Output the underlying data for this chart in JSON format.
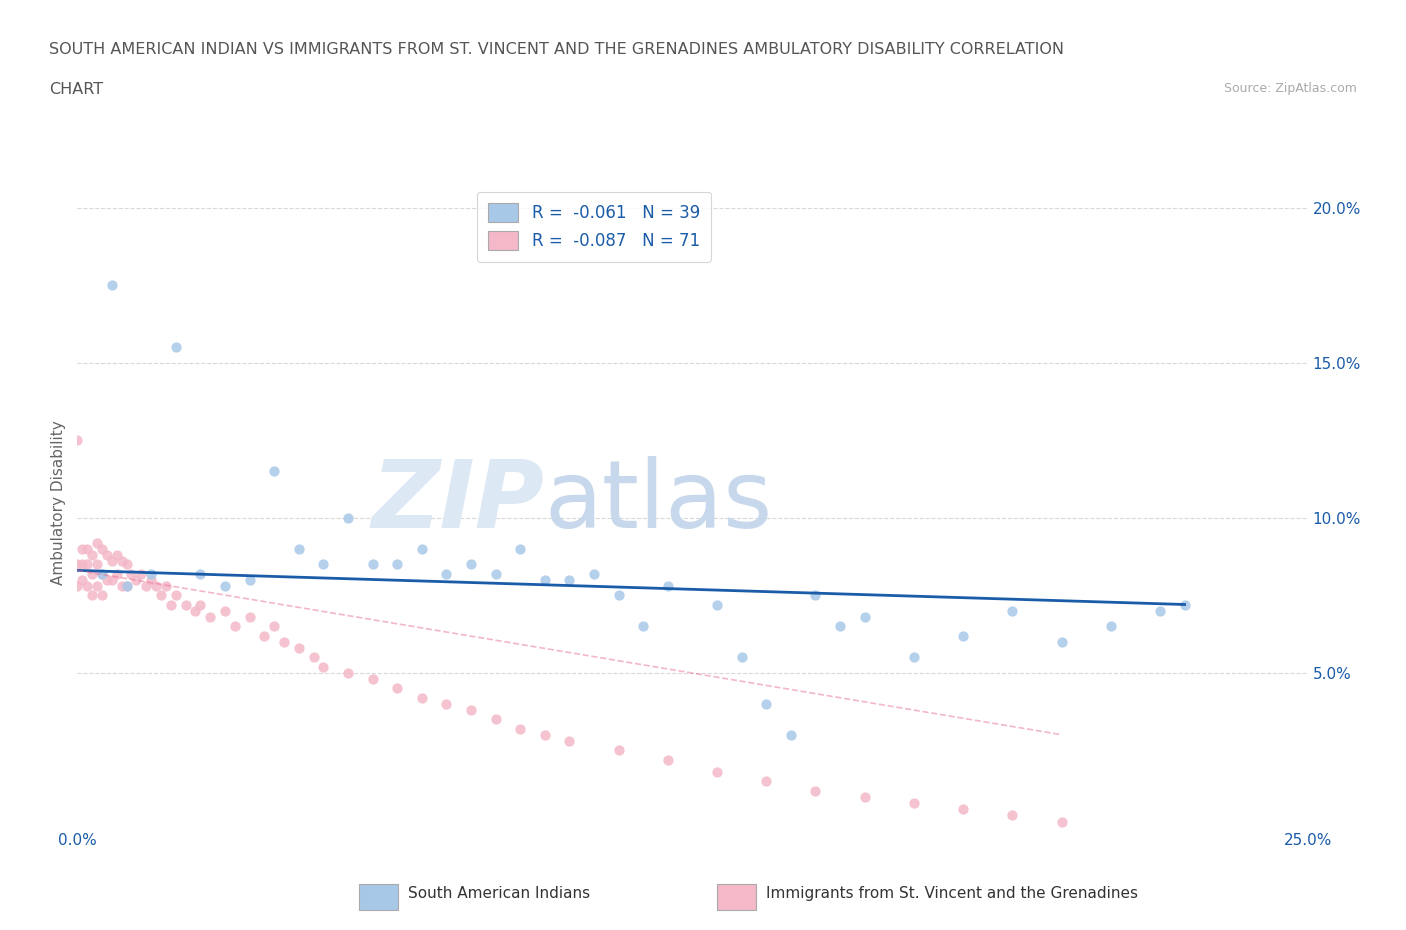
{
  "title_line1": "SOUTH AMERICAN INDIAN VS IMMIGRANTS FROM ST. VINCENT AND THE GRENADINES AMBULATORY DISABILITY CORRELATION",
  "title_line2": "CHART",
  "source_text": "Source: ZipAtlas.com",
  "ylabel": "Ambulatory Disability",
  "watermark": "ZIPatlas",
  "legend_r1": "R =  -0.061",
  "legend_n1": "N = 39",
  "legend_r2": "R =  -0.087",
  "legend_n2": "N = 71",
  "blue_color": "#a8c8e8",
  "pink_color": "#f4b8c8",
  "line_blue": "#1a5ca8",
  "line_pink": "#e87090",
  "xlim": [
    0.0,
    0.25
  ],
  "ylim": [
    0.0,
    0.21
  ],
  "xticks": [
    0.0,
    0.05,
    0.1,
    0.15,
    0.2,
    0.25
  ],
  "xticklabels": [
    "0.0%",
    "",
    "",
    "",
    "",
    "25.0%"
  ],
  "ytick_positions": [
    0.05,
    0.1,
    0.15,
    0.2
  ],
  "ytick_labels": [
    "5.0%",
    "10.0%",
    "15.0%",
    "20.0%"
  ],
  "blue_scatter_x": [
    0.007,
    0.02,
    0.04,
    0.045,
    0.05,
    0.055,
    0.06,
    0.065,
    0.07,
    0.08,
    0.085,
    0.09,
    0.1,
    0.105,
    0.11,
    0.115,
    0.12,
    0.13,
    0.135,
    0.14,
    0.15,
    0.155,
    0.16,
    0.17,
    0.18,
    0.19,
    0.2,
    0.21,
    0.22,
    0.225,
    0.005,
    0.01,
    0.015,
    0.025,
    0.03,
    0.035,
    0.075,
    0.095,
    0.145
  ],
  "blue_scatter_y": [
    0.175,
    0.155,
    0.115,
    0.09,
    0.085,
    0.1,
    0.085,
    0.085,
    0.09,
    0.085,
    0.082,
    0.09,
    0.08,
    0.082,
    0.075,
    0.065,
    0.078,
    0.072,
    0.055,
    0.04,
    0.075,
    0.065,
    0.068,
    0.055,
    0.062,
    0.07,
    0.06,
    0.065,
    0.07,
    0.072,
    0.082,
    0.078,
    0.082,
    0.082,
    0.078,
    0.08,
    0.082,
    0.08,
    0.03
  ],
  "pink_scatter_x": [
    0.0,
    0.0,
    0.0,
    0.001,
    0.001,
    0.001,
    0.002,
    0.002,
    0.002,
    0.003,
    0.003,
    0.003,
    0.004,
    0.004,
    0.004,
    0.005,
    0.005,
    0.005,
    0.006,
    0.006,
    0.007,
    0.007,
    0.008,
    0.008,
    0.009,
    0.009,
    0.01,
    0.01,
    0.011,
    0.012,
    0.013,
    0.014,
    0.015,
    0.016,
    0.017,
    0.018,
    0.019,
    0.02,
    0.022,
    0.024,
    0.025,
    0.027,
    0.03,
    0.032,
    0.035,
    0.038,
    0.04,
    0.042,
    0.045,
    0.048,
    0.05,
    0.055,
    0.06,
    0.065,
    0.07,
    0.075,
    0.08,
    0.085,
    0.09,
    0.095,
    0.1,
    0.11,
    0.12,
    0.13,
    0.14,
    0.15,
    0.16,
    0.17,
    0.18,
    0.19,
    0.2
  ],
  "pink_scatter_y": [
    0.125,
    0.085,
    0.078,
    0.09,
    0.085,
    0.08,
    0.09,
    0.085,
    0.078,
    0.088,
    0.082,
    0.075,
    0.092,
    0.085,
    0.078,
    0.09,
    0.082,
    0.075,
    0.088,
    0.08,
    0.086,
    0.08,
    0.088,
    0.082,
    0.086,
    0.078,
    0.085,
    0.078,
    0.082,
    0.08,
    0.082,
    0.078,
    0.08,
    0.078,
    0.075,
    0.078,
    0.072,
    0.075,
    0.072,
    0.07,
    0.072,
    0.068,
    0.07,
    0.065,
    0.068,
    0.062,
    0.065,
    0.06,
    0.058,
    0.055,
    0.052,
    0.05,
    0.048,
    0.045,
    0.042,
    0.04,
    0.038,
    0.035,
    0.032,
    0.03,
    0.028,
    0.025,
    0.022,
    0.018,
    0.015,
    0.012,
    0.01,
    0.008,
    0.006,
    0.004,
    0.002
  ],
  "blue_trend_x": [
    0.0,
    0.225
  ],
  "blue_trend_y": [
    0.083,
    0.072
  ],
  "pink_trend_x": [
    0.0,
    0.2
  ],
  "pink_trend_y": [
    0.083,
    0.03
  ],
  "background_color": "#ffffff",
  "grid_color": "#d8d8d8",
  "title_color": "#555555",
  "axis_label_color": "#666666",
  "tick_color": "#1a5ca8",
  "source_color": "#aaaaaa"
}
